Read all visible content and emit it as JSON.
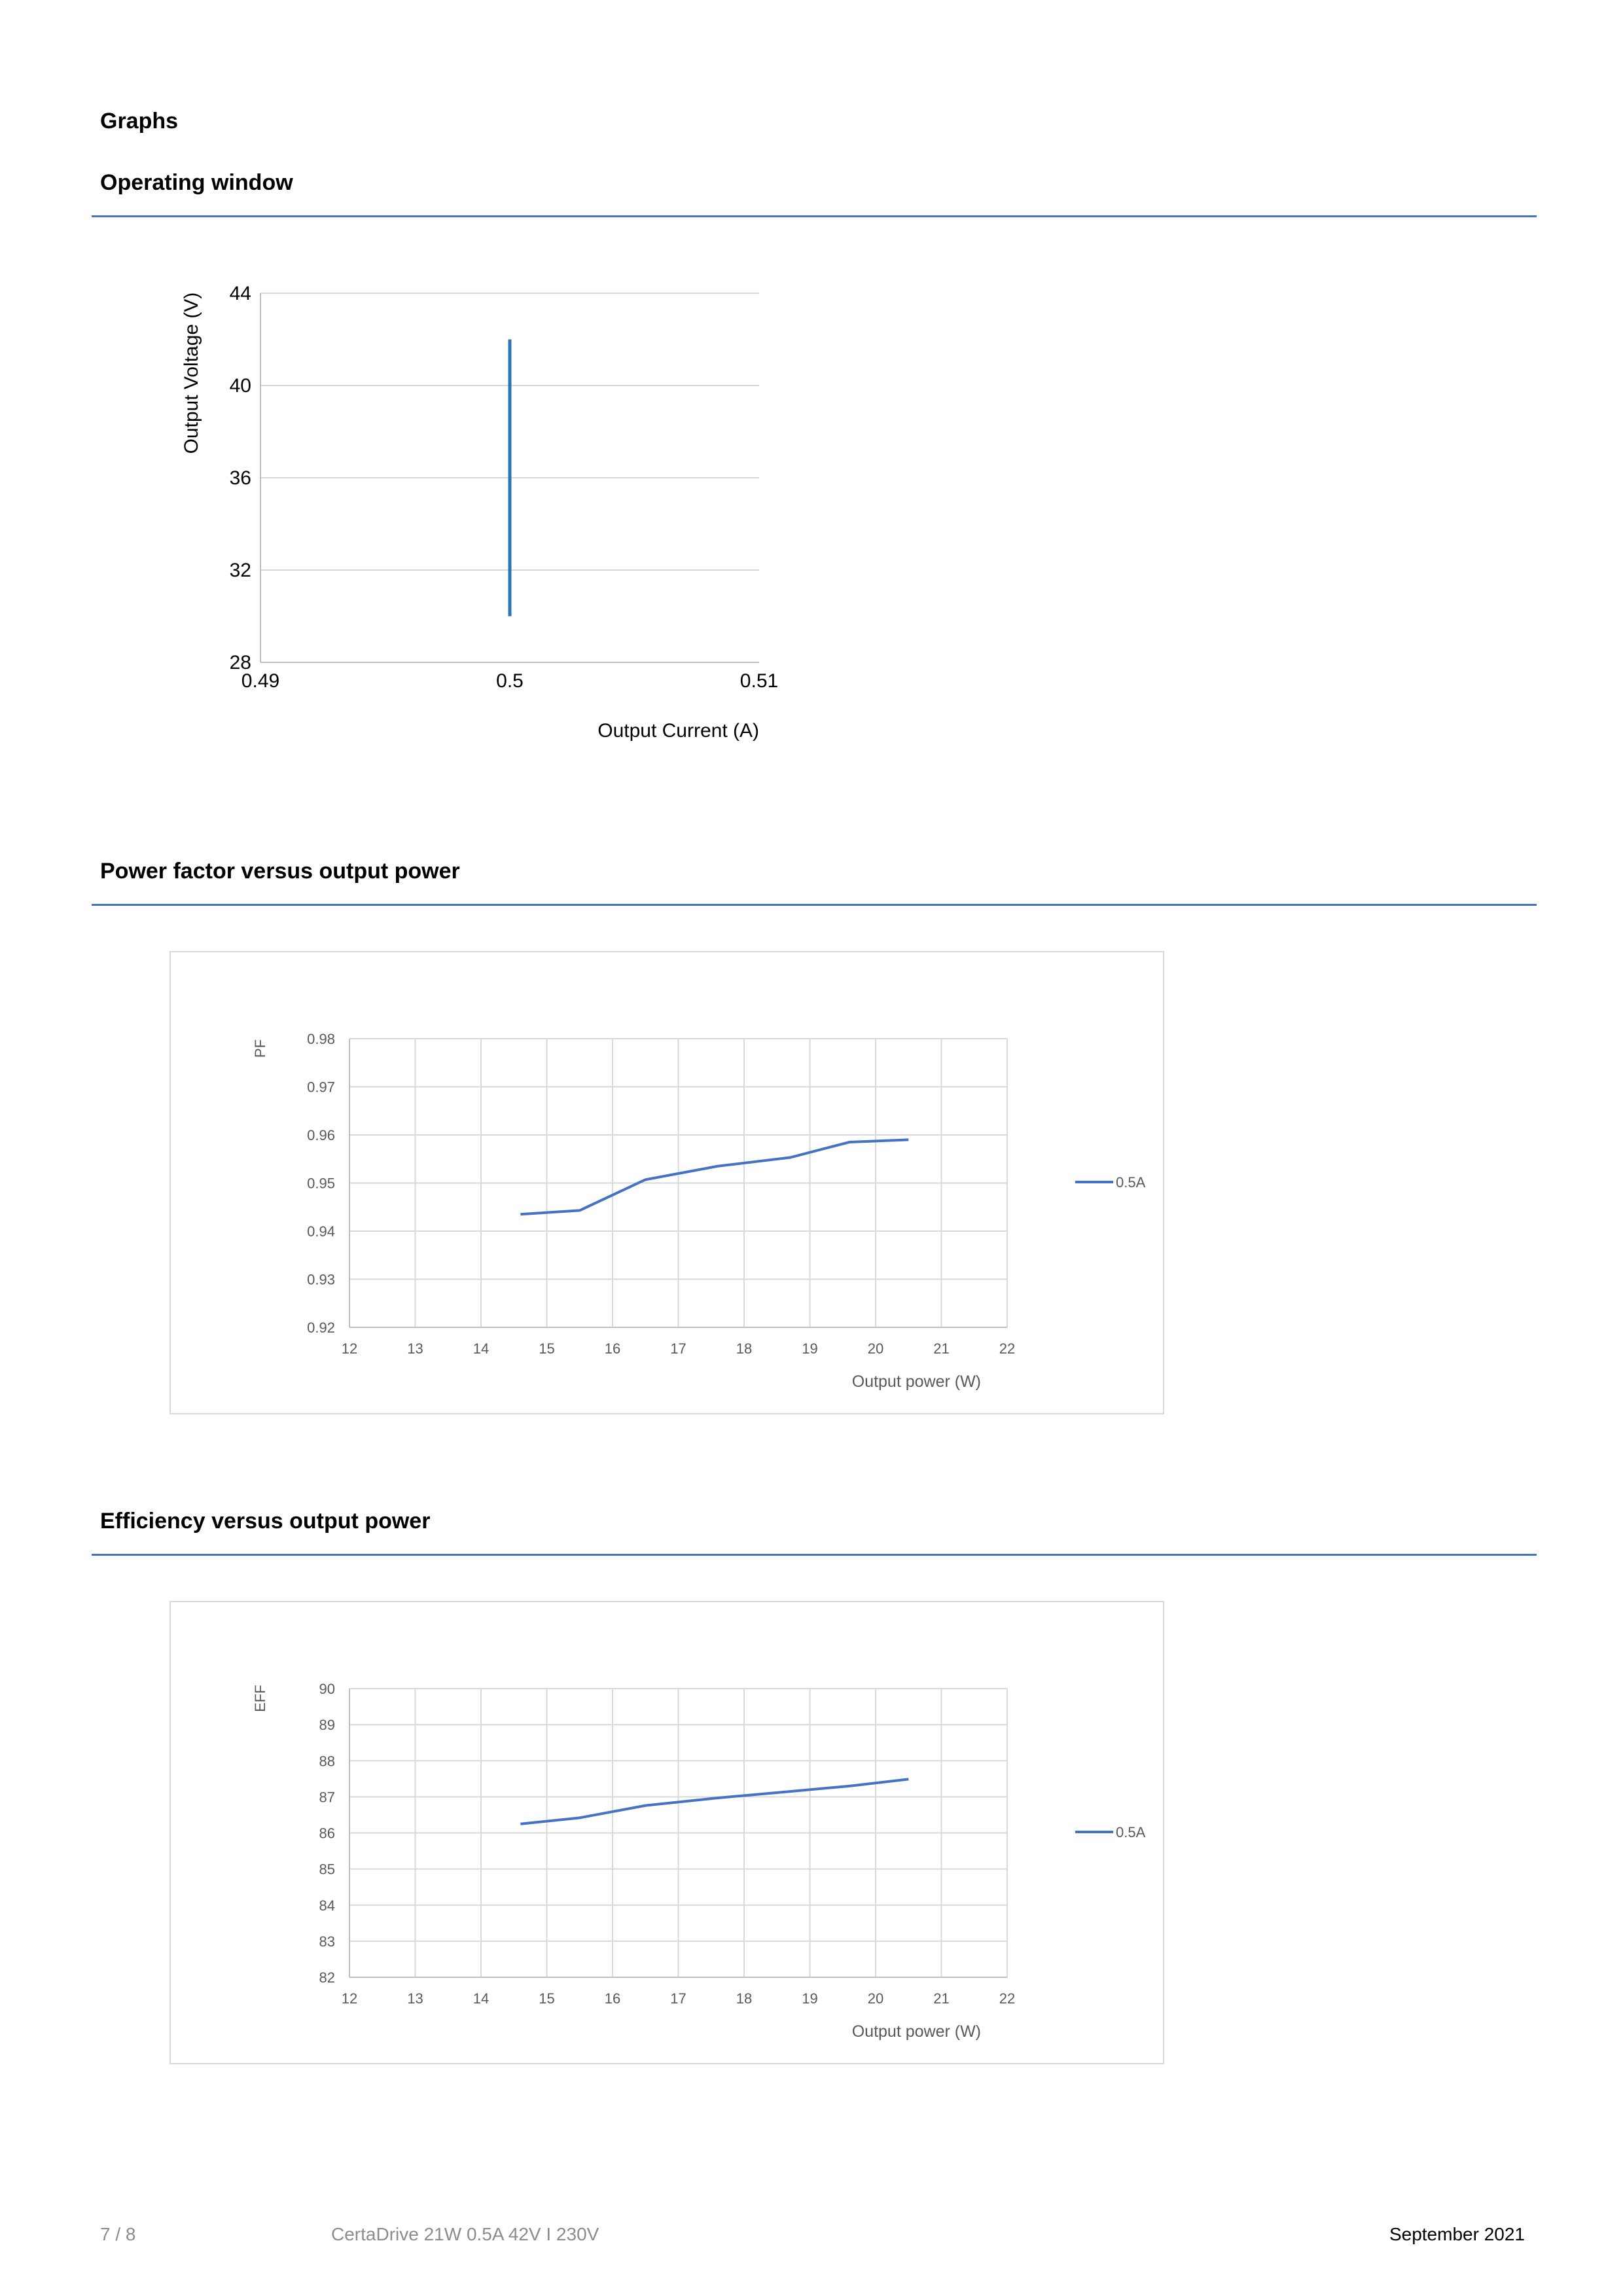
{
  "page": {
    "section_title": "Graphs",
    "operating_window_title": "Operating window",
    "pf_title": "Power factor versus output power",
    "eff_title": "Efficiency versus output power"
  },
  "footer": {
    "page_number": "7 / 8",
    "product": "CertaDrive 21W 0.5A 42V I 230V",
    "date": "September 2021"
  },
  "chart_data": [
    {
      "type": "line",
      "xlabel": "Output Current (A)",
      "ylabel": "Output Voltage (V)",
      "xlim": [
        0.49,
        0.51
      ],
      "ylim": [
        28,
        44
      ],
      "x_ticks": [
        "0.49",
        "0.5",
        "0.51"
      ],
      "y_ticks": [
        "28",
        "32",
        "36",
        "40",
        "44"
      ],
      "grid": "horizontal",
      "legend": "none",
      "series": [
        {
          "x": [
            0.5,
            0.5
          ],
          "values": [
            30,
            42
          ],
          "color": "#2e75b6"
        }
      ]
    },
    {
      "type": "line",
      "xlabel": "Output power (W)",
      "ylabel": "PF",
      "xlim": [
        12,
        22
      ],
      "ylim": [
        0.92,
        0.98
      ],
      "x_ticks": [
        "12",
        "13",
        "14",
        "15",
        "16",
        "17",
        "18",
        "19",
        "20",
        "21",
        "22"
      ],
      "y_ticks": [
        "0.92",
        "0.93",
        "0.94",
        "0.95",
        "0.96",
        "0.97",
        "0.98"
      ],
      "grid": "both",
      "legend": "right",
      "series": [
        {
          "name": "0.5A",
          "color": "#4472c4",
          "x": [
            14.6,
            15.5,
            16.5,
            17.6,
            18.7,
            19.6,
            20.5
          ],
          "values": [
            0.9435,
            0.9443,
            0.9507,
            0.9535,
            0.9553,
            0.9585,
            0.959
          ]
        }
      ]
    },
    {
      "type": "line",
      "xlabel": "Output power (W)",
      "ylabel": "EFF",
      "xlim": [
        12,
        22
      ],
      "ylim": [
        82,
        90
      ],
      "x_ticks": [
        "12",
        "13",
        "14",
        "15",
        "16",
        "17",
        "18",
        "19",
        "20",
        "21",
        "22"
      ],
      "y_ticks": [
        "82",
        "83",
        "84",
        "85",
        "86",
        "87",
        "88",
        "89",
        "90"
      ],
      "grid": "both",
      "legend": "right",
      "series": [
        {
          "name": "0.5A",
          "color": "#4472c4",
          "x": [
            14.6,
            15.5,
            16.5,
            17.6,
            18.7,
            19.6,
            20.5
          ],
          "values": [
            86.25,
            86.42,
            86.76,
            86.97,
            87.15,
            87.3,
            87.49
          ]
        }
      ]
    }
  ]
}
